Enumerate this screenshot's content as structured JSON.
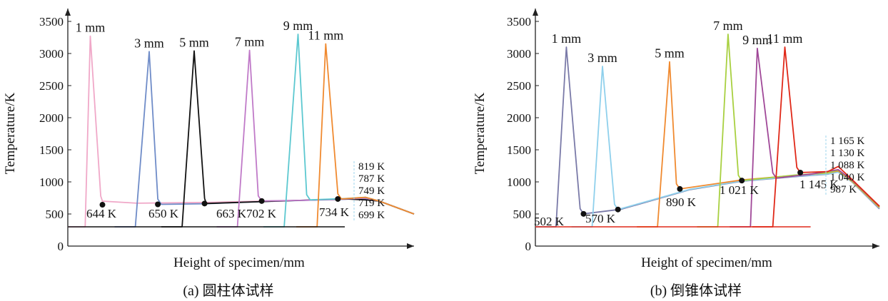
{
  "chart_data": [
    {
      "type": "line",
      "caption": "(a) 圆柱体试样",
      "xlabel": "Height of specimen/mm",
      "ylabel": "Temperature/K",
      "ylim": [
        0,
        3500
      ],
      "yticks": [
        0,
        500,
        1000,
        1500,
        2000,
        2500,
        3000,
        3500
      ],
      "legend": "inline labels above peaks",
      "series": [
        {
          "name": "1 mm",
          "color": "#f0a8c8"
        },
        {
          "name": "3 mm",
          "color": "#6f8cc8"
        },
        {
          "name": "5 mm",
          "color": "#111111"
        },
        {
          "name": "7 mm",
          "color": "#c07ac8"
        },
        {
          "name": "9 mm",
          "color": "#5cc8d0"
        },
        {
          "name": "11 mm",
          "color": "#f08a30"
        }
      ],
      "point_labels": [
        "644 K",
        "650 K",
        "663 K",
        "702 K",
        "734 K"
      ],
      "point_values": [
        644,
        650,
        663,
        702,
        734
      ],
      "end_labels": [
        "819 K",
        "787 K",
        "749 K",
        "719 K",
        "699 K"
      ]
    },
    {
      "type": "line",
      "caption": "(b) 倒锥体试样",
      "xlabel": "Height of specimen/mm",
      "ylabel": "Temperature/K",
      "ylim": [
        0,
        3500
      ],
      "yticks": [
        0,
        500,
        1000,
        1500,
        2000,
        2500,
        3000,
        3500
      ],
      "legend": "inline labels above peaks",
      "series": [
        {
          "name": "1 mm",
          "color": "#7a7aa8"
        },
        {
          "name": "3 mm",
          "color": "#8fd0ec"
        },
        {
          "name": "5 mm",
          "color": "#f08a30"
        },
        {
          "name": "7 mm",
          "color": "#a8d040"
        },
        {
          "name": "9 mm",
          "color": "#a04898"
        },
        {
          "name": "11 mm",
          "color": "#e02818"
        }
      ],
      "point_labels": [
        "502 K",
        "570 K",
        "890 K",
        "1 021 K",
        "1 145 K"
      ],
      "point_values": [
        502,
        570,
        890,
        1021,
        1145
      ],
      "end_labels": [
        "1 165 K",
        "1 130 K",
        "1 088 K",
        "1 040 K",
        "987 K"
      ]
    }
  ]
}
